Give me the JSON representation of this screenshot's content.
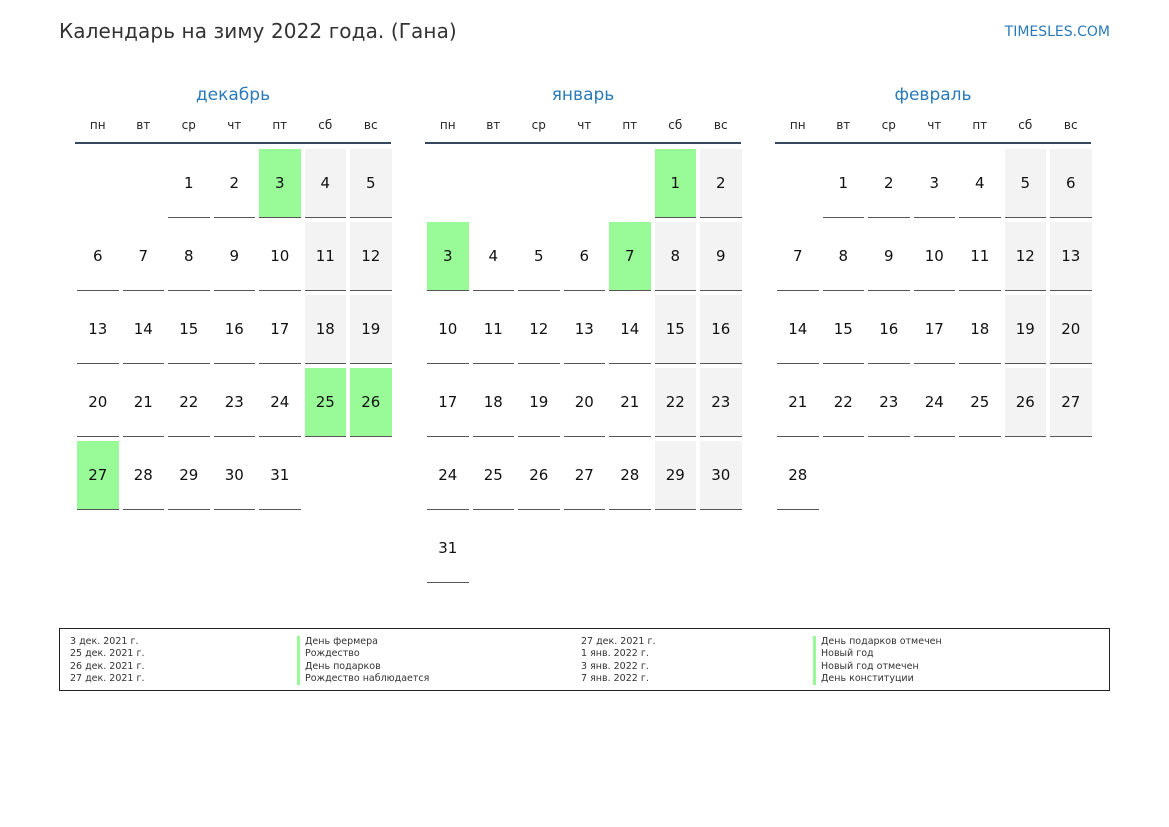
{
  "title": "Календарь на зиму 2022 года. (Гана)",
  "site": "TIMESLES.COM",
  "weekdays": [
    "пн",
    "вт",
    "ср",
    "чт",
    "пт",
    "сб",
    "вс"
  ],
  "colors": {
    "holiday": "#98fb98",
    "weekend": "#f3f3f3",
    "accent": "#2a7ab8",
    "rule": "#34495e"
  },
  "months": [
    {
      "name": "декабрь",
      "offset": 2,
      "days": 31,
      "holidays": [
        3,
        25,
        26,
        27
      ]
    },
    {
      "name": "январь",
      "offset": 5,
      "days": 31,
      "holidays": [
        1,
        3,
        7
      ]
    },
    {
      "name": "февраль",
      "offset": 1,
      "days": 28,
      "holidays": []
    }
  ],
  "legend": [
    {
      "date": "3 дек. 2021 г.",
      "name": "День фермера"
    },
    {
      "date": "25 дек. 2021 г.",
      "name": "Рождество"
    },
    {
      "date": "26 дек. 2021 г.",
      "name": "День подарков"
    },
    {
      "date": "27 дек. 2021 г.",
      "name": "Рождество наблюдается"
    },
    {
      "date": "27 дек. 2021 г.",
      "name": "День подарков отмечен"
    },
    {
      "date": "1 янв. 2022 г.",
      "name": "Новый год"
    },
    {
      "date": "3 янв. 2022 г.",
      "name": "Новый год отмечен"
    },
    {
      "date": "7 янв. 2022 г.",
      "name": "День конституции"
    }
  ]
}
